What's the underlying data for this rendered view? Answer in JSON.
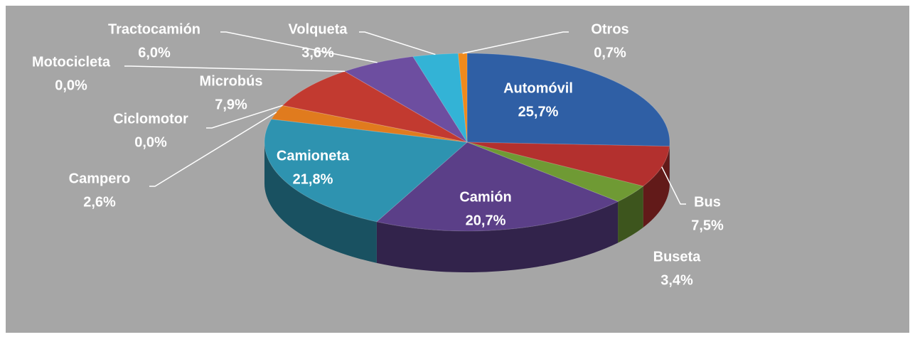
{
  "chart_data": {
    "type": "pie3d",
    "categories": [
      "Automóvil",
      "Bus",
      "Buseta",
      "Camión",
      "Camioneta",
      "Campero",
      "Ciclomotor",
      "Microbús",
      "Motocicleta",
      "Tractocamión",
      "Volqueta",
      "Otros"
    ],
    "values": [
      25.7,
      7.5,
      3.4,
      20.7,
      21.8,
      2.6,
      0.0,
      7.9,
      0.0,
      6.0,
      3.6,
      0.7
    ],
    "value_labels": [
      "25,7%",
      "7,5%",
      "3,4%",
      "20,7%",
      "21,8%",
      "2,6%",
      "0,0%",
      "7,9%",
      "0,0%",
      "6,0%",
      "3,6%",
      "0,7%"
    ],
    "colors": [
      "#2f5fa5",
      "#b3302e",
      "#6f9a34",
      "#5b3f88",
      "#2e93b0",
      "#e07b1e",
      "#3a6fc0",
      "#c23a30",
      "#7cae3a",
      "#6d4ea0",
      "#33b3d6",
      "#f08a1c"
    ]
  }
}
